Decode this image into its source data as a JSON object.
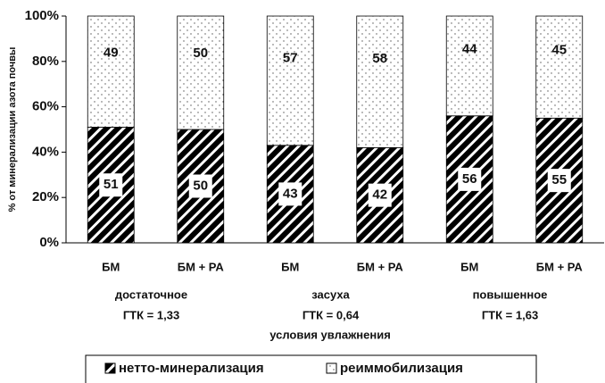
{
  "chart_data": {
    "type": "stacked_bar",
    "y_label": "% от минерализации азота почвы",
    "x_label": "условия увлажнения",
    "categories": [
      "БМ",
      "БМ + РА",
      "БМ",
      "БМ + РА",
      "БМ",
      "БМ + РА"
    ],
    "groups": [
      {
        "name": "достаточное",
        "gtk": "ГТК = 1,33"
      },
      {
        "name": "засуха",
        "gtk": "ГТК = 0,64"
      },
      {
        "name": "повышенное",
        "gtk": "ГТК = 1,63"
      }
    ],
    "series": [
      {
        "name": "нетто-минерализация",
        "color": "#000000",
        "pattern": "hatch",
        "values": [
          51,
          50,
          43,
          42,
          56,
          55
        ]
      },
      {
        "name": "реиммобилизация",
        "color": "#ffffff",
        "pattern": "dots",
        "values": [
          49,
          50,
          57,
          58,
          44,
          45
        ]
      }
    ],
    "ylim": [
      0,
      100
    ],
    "yticks": [
      {
        "value": 0,
        "label": "0%"
      },
      {
        "value": 20,
        "label": "20%"
      },
      {
        "value": 40,
        "label": "40%"
      },
      {
        "value": 60,
        "label": "60%"
      },
      {
        "value": 80,
        "label": "80%"
      },
      {
        "value": 100,
        "label": "100%"
      }
    ],
    "legend": "bottom"
  }
}
